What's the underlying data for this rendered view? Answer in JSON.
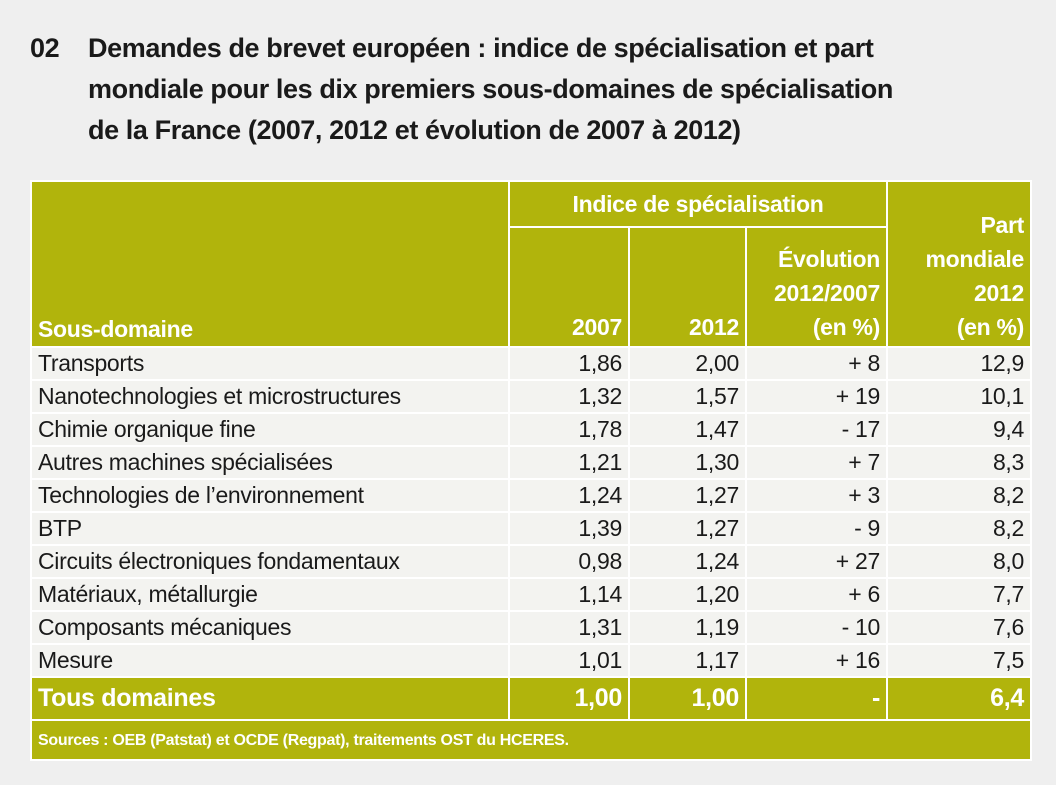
{
  "header": {
    "number": "02",
    "title_lines": [
      "Demandes de brevet européen : indice de spécialisation et part",
      "mondiale pour les dix premiers sous-domaines de spécialisation",
      "de la France (2007, 2012 et évolution de 2007 à 2012)"
    ]
  },
  "table": {
    "group_header": "Indice de spécialisation",
    "columns": [
      "Sous-domaine",
      "2007",
      "2012",
      "Évolution\n2012/2007\n(en %)",
      "Part\nmondiale\n2012\n(en %)"
    ],
    "rows": [
      [
        "Transports",
        "1,86",
        "2,00",
        "+ 8",
        "12,9"
      ],
      [
        "Nanotechnologies et microstructures",
        "1,32",
        "1,57",
        "+ 19",
        "10,1"
      ],
      [
        "Chimie organique fine",
        "1,78",
        "1,47",
        "- 17",
        "9,4"
      ],
      [
        "Autres machines spécialisées",
        "1,21",
        "1,30",
        "+ 7",
        "8,3"
      ],
      [
        "Technologies de l’environnement",
        "1,24",
        "1,27",
        "+ 3",
        "8,2"
      ],
      [
        "BTP",
        "1,39",
        "1,27",
        "- 9",
        "8,2"
      ],
      [
        "Circuits électroniques fondamentaux",
        "0,98",
        "1,24",
        "+ 27",
        "8,0"
      ],
      [
        "Matériaux, métallurgie",
        "1,14",
        "1,20",
        "+ 6",
        "7,7"
      ],
      [
        "Composants mécaniques",
        "1,31",
        "1,19",
        "- 10",
        "7,6"
      ],
      [
        "Mesure",
        "1,01",
        "1,17",
        "+ 16",
        "7,5"
      ]
    ],
    "total": [
      "Tous domaines",
      "1,00",
      "1,00",
      "-",
      "6,4"
    ],
    "source": "Sources : OEB (Patstat) et OCDE (Regpat), traitements OST du HCERES."
  }
}
